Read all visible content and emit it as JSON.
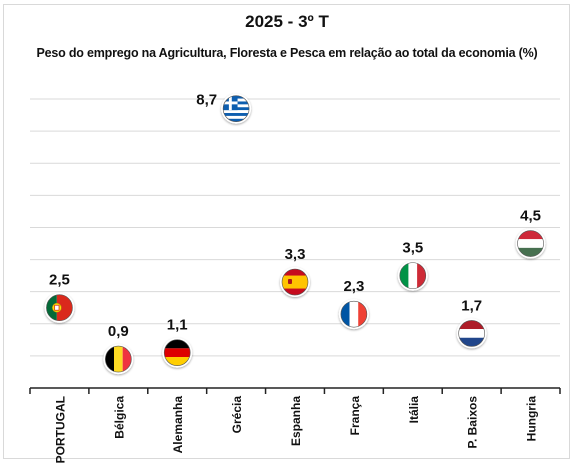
{
  "chart_data": {
    "type": "scatter",
    "title": "2025 - 3º T",
    "subtitle": "Peso do emprego na Agricultura, Floresta e Pesca em relação ao total da economia (%)",
    "categories": [
      "PORTUGAL",
      "Bélgica",
      "Alemanha",
      "Grécia",
      "Espanha",
      "França",
      "Itália",
      "P. Baixos",
      "Hungria"
    ],
    "values": [
      2.5,
      0.9,
      1.1,
      8.7,
      3.3,
      2.3,
      3.5,
      1.7,
      4.5
    ],
    "data_labels": [
      "2,5",
      "0,9",
      "1,1",
      "8,7",
      "3,3",
      "2,3",
      "3,5",
      "1,7",
      "4,5"
    ],
    "flags": [
      "portugal-flag",
      "belgium-flag",
      "germany-flag",
      "greece-flag",
      "spain-flag",
      "france-flag",
      "italy-flag",
      "netherlands-flag",
      "hungary-flag"
    ],
    "ylim": [
      0,
      9.5
    ],
    "grid": true,
    "xlabel": "",
    "ylabel": ""
  }
}
